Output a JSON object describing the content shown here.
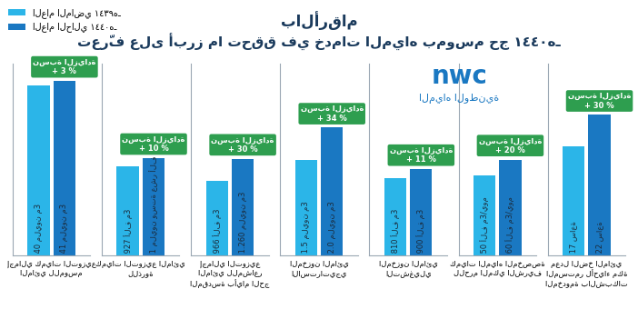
{
  "title": "بالأرقام",
  "subtitle": "تعرّف على أبرز ما تحقق في خدمات المياه بموسم حج ١٤٤٠هـ",
  "logo": {
    "text": "nwc",
    "subtitle": "المياه الوطنية"
  },
  "legend": "upper left",
  "chart_data": [
    {
      "type": "bar",
      "categories": [
        "إجمالي كميات التوزيع المائي للموسم"
      ],
      "tick_labels": "x",
      "ylim": [
        0,
        45
      ],
      "annotation": {
        "label": "نسبة الزيادة",
        "text": "+ 3 %"
      },
      "series": [
        {
          "name": "العام الماضي ١٤٣٩هـ",
          "color": "#2bb5e8",
          "values": [
            40
          ],
          "value_labels": [
            "40 مليون م3"
          ]
        },
        {
          "name": "العام الحالي ١٤٤٠هـ",
          "color": "#1a78c2",
          "values": [
            41
          ],
          "value_labels": [
            "41 مليون م3"
          ]
        }
      ]
    },
    {
      "type": "bar",
      "categories": [
        "كميات التوزيع المائي للذروة"
      ],
      "tick_labels": "x",
      "ylim": [
        0,
        2000
      ],
      "annotation": {
        "label": "نسبة الزيادة",
        "text": "+ 10 %"
      },
      "series": [
        {
          "name": "العام الماضي ١٤٣٩هـ",
          "color": "#2bb5e8",
          "values": [
            927
          ],
          "value_labels": [
            "927 ألف م3"
          ]
        },
        {
          "name": "العام الحالي ١٤٤٠هـ",
          "color": "#1a78c2",
          "values": [
            1016
          ],
          "value_labels": [
            "1 مليون وستة عشر ألف م3"
          ]
        }
      ]
    },
    {
      "type": "bar",
      "categories": [
        "إجمالي التوزيع المائي للمشاعر المقدسة بأيام الحج"
      ],
      "tick_labels": "x",
      "ylim": [
        0,
        2500
      ],
      "annotation": {
        "label": "نسبة الزيادة",
        "text": "+ 30 %"
      },
      "series": [
        {
          "name": "العام الماضي ١٤٣٩هـ",
          "color": "#2bb5e8",
          "values": [
            966
          ],
          "value_labels": [
            "966 ألف م3"
          ]
        },
        {
          "name": "العام الحالي ١٤٤٠هـ",
          "color": "#1a78c2",
          "values": [
            1260
          ],
          "value_labels": [
            "1.260 مليون م3"
          ]
        }
      ]
    },
    {
      "type": "bar",
      "categories": [
        "المخزون المائي الاستراتيجي"
      ],
      "tick_labels": "x",
      "ylim": [
        0,
        3
      ],
      "annotation": {
        "label": "نسبة الزيادة",
        "text": "+ 34 %"
      },
      "series": [
        {
          "name": "العام الماضي ١٤٣٩هـ",
          "color": "#2bb5e8",
          "values": [
            1.5
          ],
          "value_labels": [
            "1.5 مليون م3"
          ]
        },
        {
          "name": "العام الحالي ١٤٤٠هـ",
          "color": "#1a78c2",
          "values": [
            2.0
          ],
          "value_labels": [
            "2.0 مليون م3"
          ]
        }
      ]
    },
    {
      "type": "bar",
      "categories": [
        "المخزون المائي التشغيلي"
      ],
      "tick_labels": "x",
      "ylim": [
        0,
        2000
      ],
      "annotation": {
        "label": "نسبة الزيادة",
        "text": "+ 11 %"
      },
      "series": [
        {
          "name": "العام الماضي ١٤٣٩هـ",
          "color": "#2bb5e8",
          "values": [
            810
          ],
          "value_labels": [
            "810 ألف م3"
          ]
        },
        {
          "name": "العام الحالي ١٤٤٠هـ",
          "color": "#1a78c2",
          "values": [
            900
          ],
          "value_labels": [
            "900 ألف م3"
          ]
        }
      ]
    },
    {
      "type": "bar",
      "categories": [
        "كميات المياه المخصصة للحرم المكي الشريف"
      ],
      "tick_labels": "x",
      "ylim": [
        0,
        120
      ],
      "annotation": {
        "label": "نسبة الزيادة",
        "text": "+ 20 %"
      },
      "series": [
        {
          "name": "العام الماضي ١٤٣٩هـ",
          "color": "#2bb5e8",
          "values": [
            50
          ],
          "value_labels": [
            "50 ألف م3/يوم"
          ]
        },
        {
          "name": "العام الحالي ١٤٤٠هـ",
          "color": "#1a78c2",
          "values": [
            60
          ],
          "value_labels": [
            "60 ألف م3/يوم"
          ]
        }
      ]
    },
    {
      "type": "bar",
      "categories": [
        "معدل الضخ المائي المستمر لأحياء مكة المخدومة بالشبكات"
      ],
      "tick_labels": "x",
      "ylim": [
        0,
        30
      ],
      "annotation": {
        "label": "نسبة الزيادة",
        "text": "+ 30 %"
      },
      "series": [
        {
          "name": "العام الماضي ١٤٣٩هـ",
          "color": "#2bb5e8",
          "values": [
            17
          ],
          "value_labels": [
            "17 ساعة"
          ]
        },
        {
          "name": "العام الحالي ١٤٤٠هـ",
          "color": "#1a78c2",
          "values": [
            22
          ],
          "value_labels": [
            "22 ساعة"
          ]
        }
      ]
    }
  ]
}
